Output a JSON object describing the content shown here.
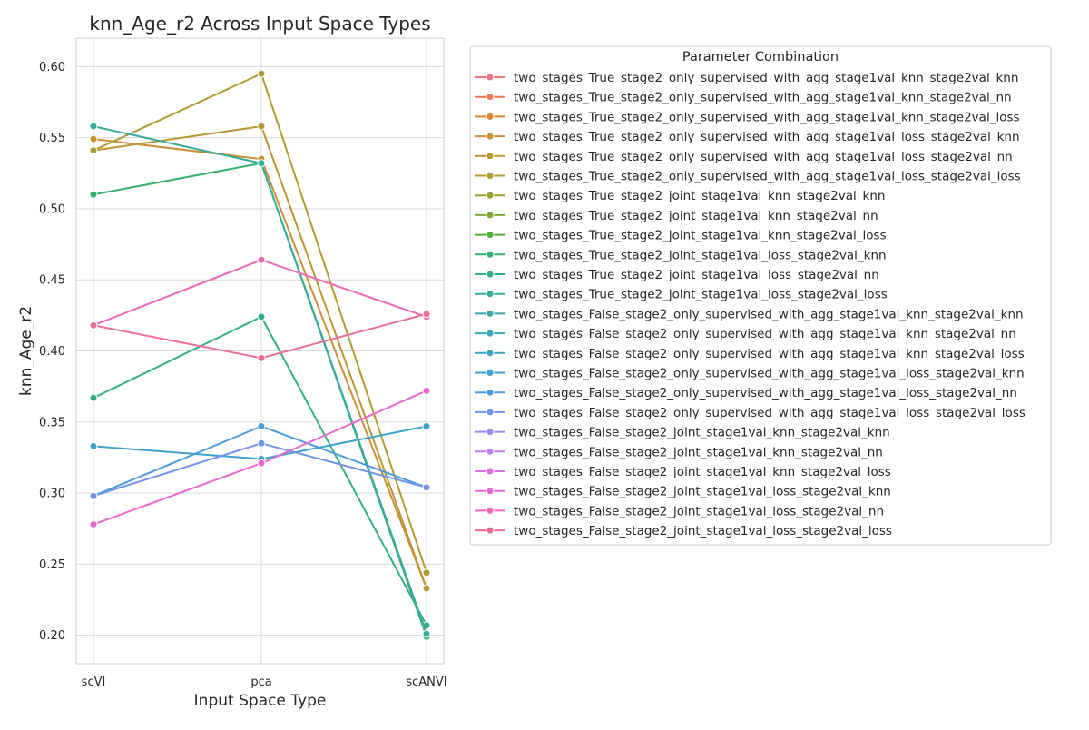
{
  "chart_data": {
    "type": "line",
    "title": "knn_Age_r2 Across Input Space Types",
    "xlabel": "Input Space Type",
    "ylabel": "knn_Age_r2",
    "categories": [
      "scVI",
      "pca",
      "scANVI"
    ],
    "ylim": [
      0.18,
      0.62
    ],
    "yticks": [
      0.2,
      0.25,
      0.3,
      0.35,
      0.4,
      0.45,
      0.5,
      0.55,
      0.6
    ],
    "ytick_labels": [
      "0.20",
      "0.25",
      "0.30",
      "0.35",
      "0.40",
      "0.45",
      "0.50",
      "0.55",
      "0.60"
    ],
    "grid": true,
    "legend_title": "Parameter Combination",
    "legend_position": "outside-right",
    "series": [
      {
        "name": "two_stages_True_stage2_only_supervised_with_agg_stage1val_knn_stage2val_knn",
        "color": "#f0717c",
        "values": null
      },
      {
        "name": "two_stages_True_stage2_only_supervised_with_agg_stage1val_knn_stage2val_nn",
        "color": "#ed7757",
        "values": null
      },
      {
        "name": "two_stages_True_stage2_only_supervised_with_agg_stage1val_knn_stage2val_loss",
        "color": "#da8632",
        "values": null
      },
      {
        "name": "two_stages_True_stage2_only_supervised_with_agg_stage1val_loss_stage2val_knn",
        "color": "#ca9035",
        "values": [
          0.549,
          0.535,
          0.233
        ]
      },
      {
        "name": "two_stages_True_stage2_only_supervised_with_agg_stage1val_loss_stage2val_nn",
        "color": "#bc9632",
        "values": [
          0.541,
          0.558,
          0.233
        ]
      },
      {
        "name": "two_stages_True_stage2_only_supervised_with_agg_stage1val_loss_stage2val_loss",
        "color": "#ad9c31",
        "values": [
          0.541,
          0.595,
          0.244
        ]
      },
      {
        "name": "two_stages_True_stage2_joint_stage1val_knn_stage2val_knn",
        "color": "#9ba031",
        "values": null
      },
      {
        "name": "two_stages_True_stage2_joint_stage1val_knn_stage2val_nn",
        "color": "#7fa831",
        "values": null
      },
      {
        "name": "two_stages_True_stage2_joint_stage1val_knn_stage2val_loss",
        "color": "#4fae38",
        "values": null
      },
      {
        "name": "two_stages_True_stage2_joint_stage1val_loss_stage2val_knn",
        "color": "#34ae6c",
        "values": [
          0.51,
          0.532,
          0.199
        ]
      },
      {
        "name": "two_stages_True_stage2_joint_stage1val_loss_stage2val_nn",
        "color": "#36ad8a",
        "values": [
          0.367,
          0.424,
          0.207
        ]
      },
      {
        "name": "two_stages_True_stage2_joint_stage1val_loss_stage2val_loss",
        "color": "#38ab9b",
        "values": [
          0.558,
          0.532,
          0.201
        ]
      },
      {
        "name": "two_stages_False_stage2_only_supervised_with_agg_stage1val_knn_stage2val_knn",
        "color": "#3aa9a6",
        "values": null
      },
      {
        "name": "two_stages_False_stage2_only_supervised_with_agg_stage1val_knn_stage2val_nn",
        "color": "#3ba7b1",
        "values": null
      },
      {
        "name": "two_stages_False_stage2_only_supervised_with_agg_stage1val_knn_stage2val_loss",
        "color": "#3ca5bd",
        "values": null
      },
      {
        "name": "two_stages_False_stage2_only_supervised_with_agg_stage1val_loss_stage2val_knn",
        "color": "#3ea2cb",
        "values": [
          0.333,
          0.324,
          0.347
        ]
      },
      {
        "name": "two_stages_False_stage2_only_supervised_with_agg_stage1val_loss_stage2val_nn",
        "color": "#4a9bdb",
        "values": [
          0.298,
          0.347,
          0.304
        ]
      },
      {
        "name": "two_stages_False_stage2_only_supervised_with_agg_stage1val_loss_stage2val_loss",
        "color": "#7194e9",
        "values": [
          0.298,
          0.335,
          0.304
        ]
      },
      {
        "name": "two_stages_False_stage2_joint_stage1val_knn_stage2val_knn",
        "color": "#9b8ae9",
        "values": null
      },
      {
        "name": "two_stages_False_stage2_joint_stage1val_knn_stage2val_nn",
        "color": "#bd7ee8",
        "values": null
      },
      {
        "name": "two_stages_False_stage2_joint_stage1val_knn_stage2val_loss",
        "color": "#de6ee4",
        "values": null
      },
      {
        "name": "two_stages_False_stage2_joint_stage1val_loss_stage2val_knn",
        "color": "#eb67cf",
        "values": [
          0.278,
          0.321,
          0.372
        ]
      },
      {
        "name": "two_stages_False_stage2_joint_stage1val_loss_stage2val_nn",
        "color": "#ee68b6",
        "values": [
          0.418,
          0.464,
          0.424
        ]
      },
      {
        "name": "two_stages_False_stage2_joint_stage1val_loss_stage2val_loss",
        "color": "#f06b9b",
        "values": [
          0.418,
          0.395,
          0.426
        ]
      }
    ]
  }
}
